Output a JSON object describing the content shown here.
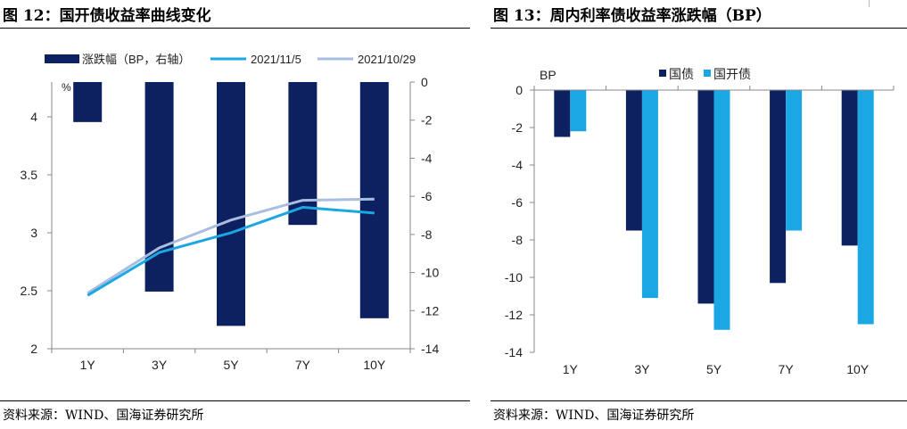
{
  "left_title": "图 12：国开债收益率曲线变化",
  "right_title": "图 13：周内利率债收益率涨跌幅（BP）",
  "left_source": "资料来源：WIND、国海证券研究所",
  "right_source": "资料来源：WIND、国海证券研究所",
  "colors": {
    "navy": "#0d2060",
    "light_blue": "#1aa7e4",
    "pale_blue": "#a9bde0",
    "axis": "#888888"
  },
  "chart_data": [
    {
      "type": "bar+line",
      "title": "图 12：国开债收益率曲线变化",
      "categories": [
        "1Y",
        "3Y",
        "5Y",
        "7Y",
        "10Y"
      ],
      "left_unit_label": "%",
      "y_left": {
        "ylim": [
          2,
          4.3
        ],
        "ticks": [
          2,
          2.5,
          3,
          3.5,
          4
        ],
        "tick_labels": [
          "2",
          "2.5",
          "3",
          "3.5",
          "4"
        ]
      },
      "y_right": {
        "ylim": [
          -14,
          0
        ],
        "ticks": [
          0,
          -2,
          -4,
          -6,
          -8,
          -10,
          -12,
          -14
        ],
        "tick_labels": [
          "0",
          "-2",
          "-4",
          "-6",
          "-8",
          "-10",
          "-12",
          "-14"
        ]
      },
      "bar_series": {
        "name": "涨跌幅（BP，右轴）",
        "axis": "right",
        "values": [
          -2.1,
          -11.0,
          -12.8,
          -7.5,
          -12.4
        ]
      },
      "line_series": [
        {
          "name": "2021/11/5",
          "axis": "left",
          "values": [
            2.46,
            2.83,
            3.0,
            3.22,
            3.17
          ]
        },
        {
          "name": "2021/10/29",
          "axis": "left",
          "values": [
            2.48,
            2.87,
            3.11,
            3.28,
            3.29
          ]
        }
      ],
      "legend_position": "top"
    },
    {
      "type": "bar",
      "title": "图 13：周内利率债收益率涨跌幅（BP）",
      "categories": [
        "1Y",
        "3Y",
        "5Y",
        "7Y",
        "10Y"
      ],
      "ylabel": "BP",
      "ylim": [
        -14,
        0
      ],
      "ticks": [
        0,
        -2,
        -4,
        -6,
        -8,
        -10,
        -12,
        -14
      ],
      "tick_labels": [
        "0",
        "-2",
        "-4",
        "-6",
        "-8",
        "-10",
        "-12",
        "-14"
      ],
      "series": [
        {
          "name": "国债",
          "values": [
            -2.5,
            -7.5,
            -11.4,
            -10.3,
            -8.3
          ]
        },
        {
          "name": "国开债",
          "values": [
            -2.2,
            -11.1,
            -12.8,
            -7.5,
            -12.5
          ]
        }
      ],
      "legend_position": "top"
    }
  ]
}
